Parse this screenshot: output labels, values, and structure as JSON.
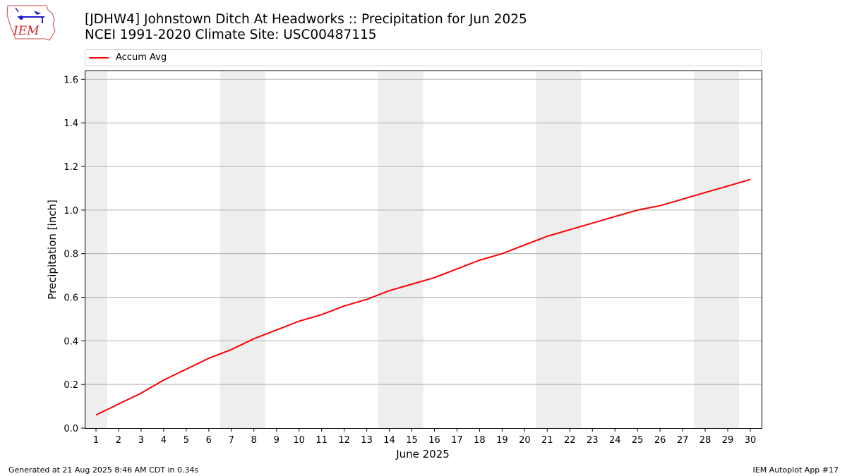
{
  "header": {
    "title_line1": "[JDHW4] Johnstown Ditch At Headworks :: Precipitation for Jun 2025",
    "title_line2": "NCEI 1991-2020 Climate Site: USC00487115"
  },
  "logo": {
    "text": "IEM"
  },
  "footer": {
    "generated": "Generated at 21 Aug 2025 8:46 AM CDT in 0.34s",
    "app": "IEM Autoplot App #17"
  },
  "colors": {
    "series": "#ff0000",
    "weekend_band": "#eeeeee",
    "grid": "#b0b0b0"
  },
  "chart_data": {
    "type": "line",
    "title": "[JDHW4] Johnstown Ditch At Headworks :: Precipitation for Jun 2025",
    "subtitle": "NCEI 1991-2020 Climate Site: USC00487115",
    "xlabel": "June 2025",
    "ylabel": "Precipitation [inch]",
    "x": [
      1,
      2,
      3,
      4,
      5,
      6,
      7,
      8,
      9,
      10,
      11,
      12,
      13,
      14,
      15,
      16,
      17,
      18,
      19,
      20,
      21,
      22,
      23,
      24,
      25,
      26,
      27,
      28,
      29,
      30
    ],
    "xlim": [
      0.5,
      30.5
    ],
    "ylim": [
      0,
      1.64
    ],
    "yticks": [
      0.0,
      0.2,
      0.4,
      0.6,
      0.8,
      1.0,
      1.2,
      1.4,
      1.6
    ],
    "ytick_labels": [
      "0.0",
      "0.2",
      "0.4",
      "0.6",
      "0.8",
      "1.0",
      "1.2",
      "1.4",
      "1.6"
    ],
    "grid": "y",
    "weekend_bands": [
      [
        0.5,
        1.5
      ],
      [
        6.5,
        8.5
      ],
      [
        13.5,
        15.5
      ],
      [
        20.5,
        22.5
      ],
      [
        27.5,
        29.5
      ]
    ],
    "legend_position": "top",
    "series": [
      {
        "name": "Accum Avg",
        "color": "#ff0000",
        "values": [
          0.06,
          0.11,
          0.16,
          0.22,
          0.27,
          0.32,
          0.36,
          0.41,
          0.45,
          0.49,
          0.52,
          0.56,
          0.59,
          0.63,
          0.66,
          0.69,
          0.73,
          0.77,
          0.8,
          0.84,
          0.88,
          0.91,
          0.94,
          0.97,
          1.0,
          1.02,
          1.05,
          1.08,
          1.11,
          1.14
        ]
      }
    ]
  }
}
